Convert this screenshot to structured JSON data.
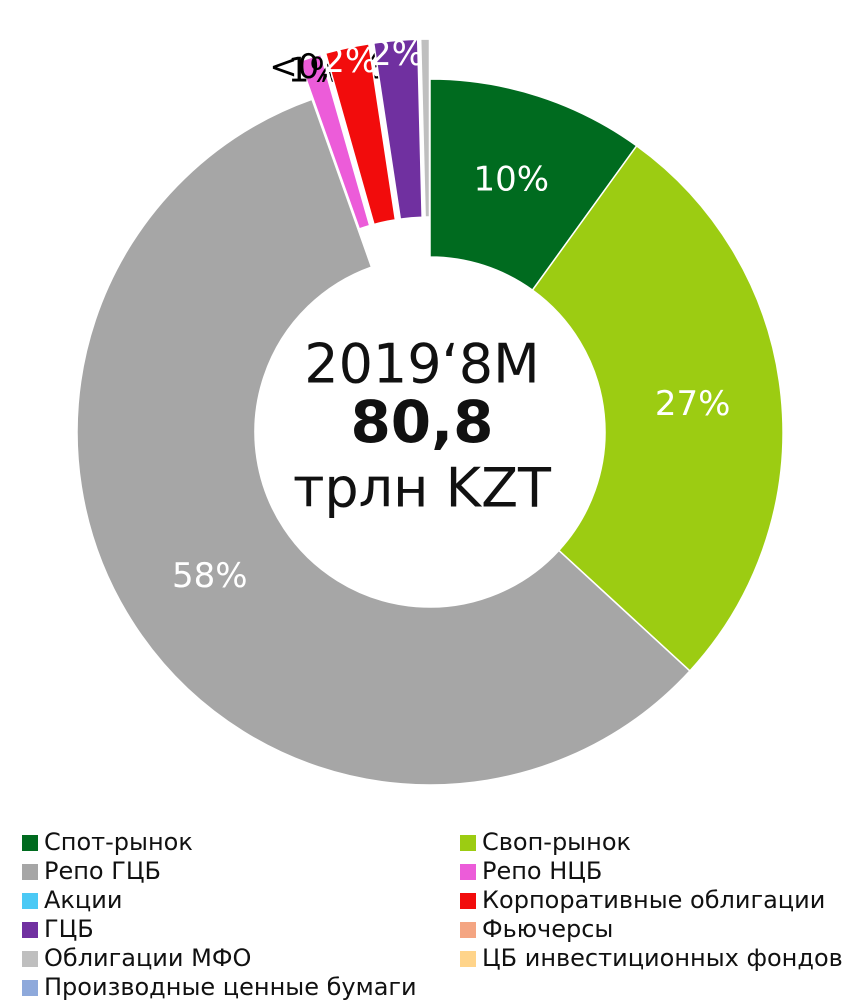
{
  "chart_data": {
    "type": "donut",
    "center_texts": [
      "2019‘8M",
      "80,8",
      "трлн KZT"
    ],
    "categories": [
      "Спот-рынок",
      "Своп-рынок",
      "Репо ГЦБ",
      "Репо НЦБ",
      "Акции",
      "Корпоративные облигации",
      "ГЦБ",
      "Фьючерсы",
      "Облигации МФО",
      "ЦБ инвестиционных фондов",
      "Производные ценные бумаги"
    ],
    "values": [
      10,
      27,
      58,
      1,
      0.05,
      2,
      2,
      0,
      0.4,
      0,
      0
    ],
    "value_labels": [
      "10%",
      "27%",
      "58%",
      "1%",
      "<0,1%",
      "2%",
      "2%",
      null,
      null,
      null,
      null
    ],
    "colors": [
      "#006b1f",
      "#9ccc12",
      "#a6a6a6",
      "#ec5cd9",
      "#4bc9f5",
      "#f20c0c",
      "#7030a0",
      "#f4a582",
      "#bfbfbf",
      "#ffd48a",
      "#8ea9db"
    ],
    "label_colors": [
      "#ffffff",
      "#ffffff",
      "#ffffff",
      "#000000",
      "#000000",
      "#ffffff",
      "#ffffff",
      "#000000",
      "#000000",
      "#000000",
      "#000000"
    ],
    "exploded": [
      false,
      false,
      false,
      true,
      true,
      true,
      true,
      true,
      true,
      true,
      true
    ],
    "legend": "bottom"
  }
}
